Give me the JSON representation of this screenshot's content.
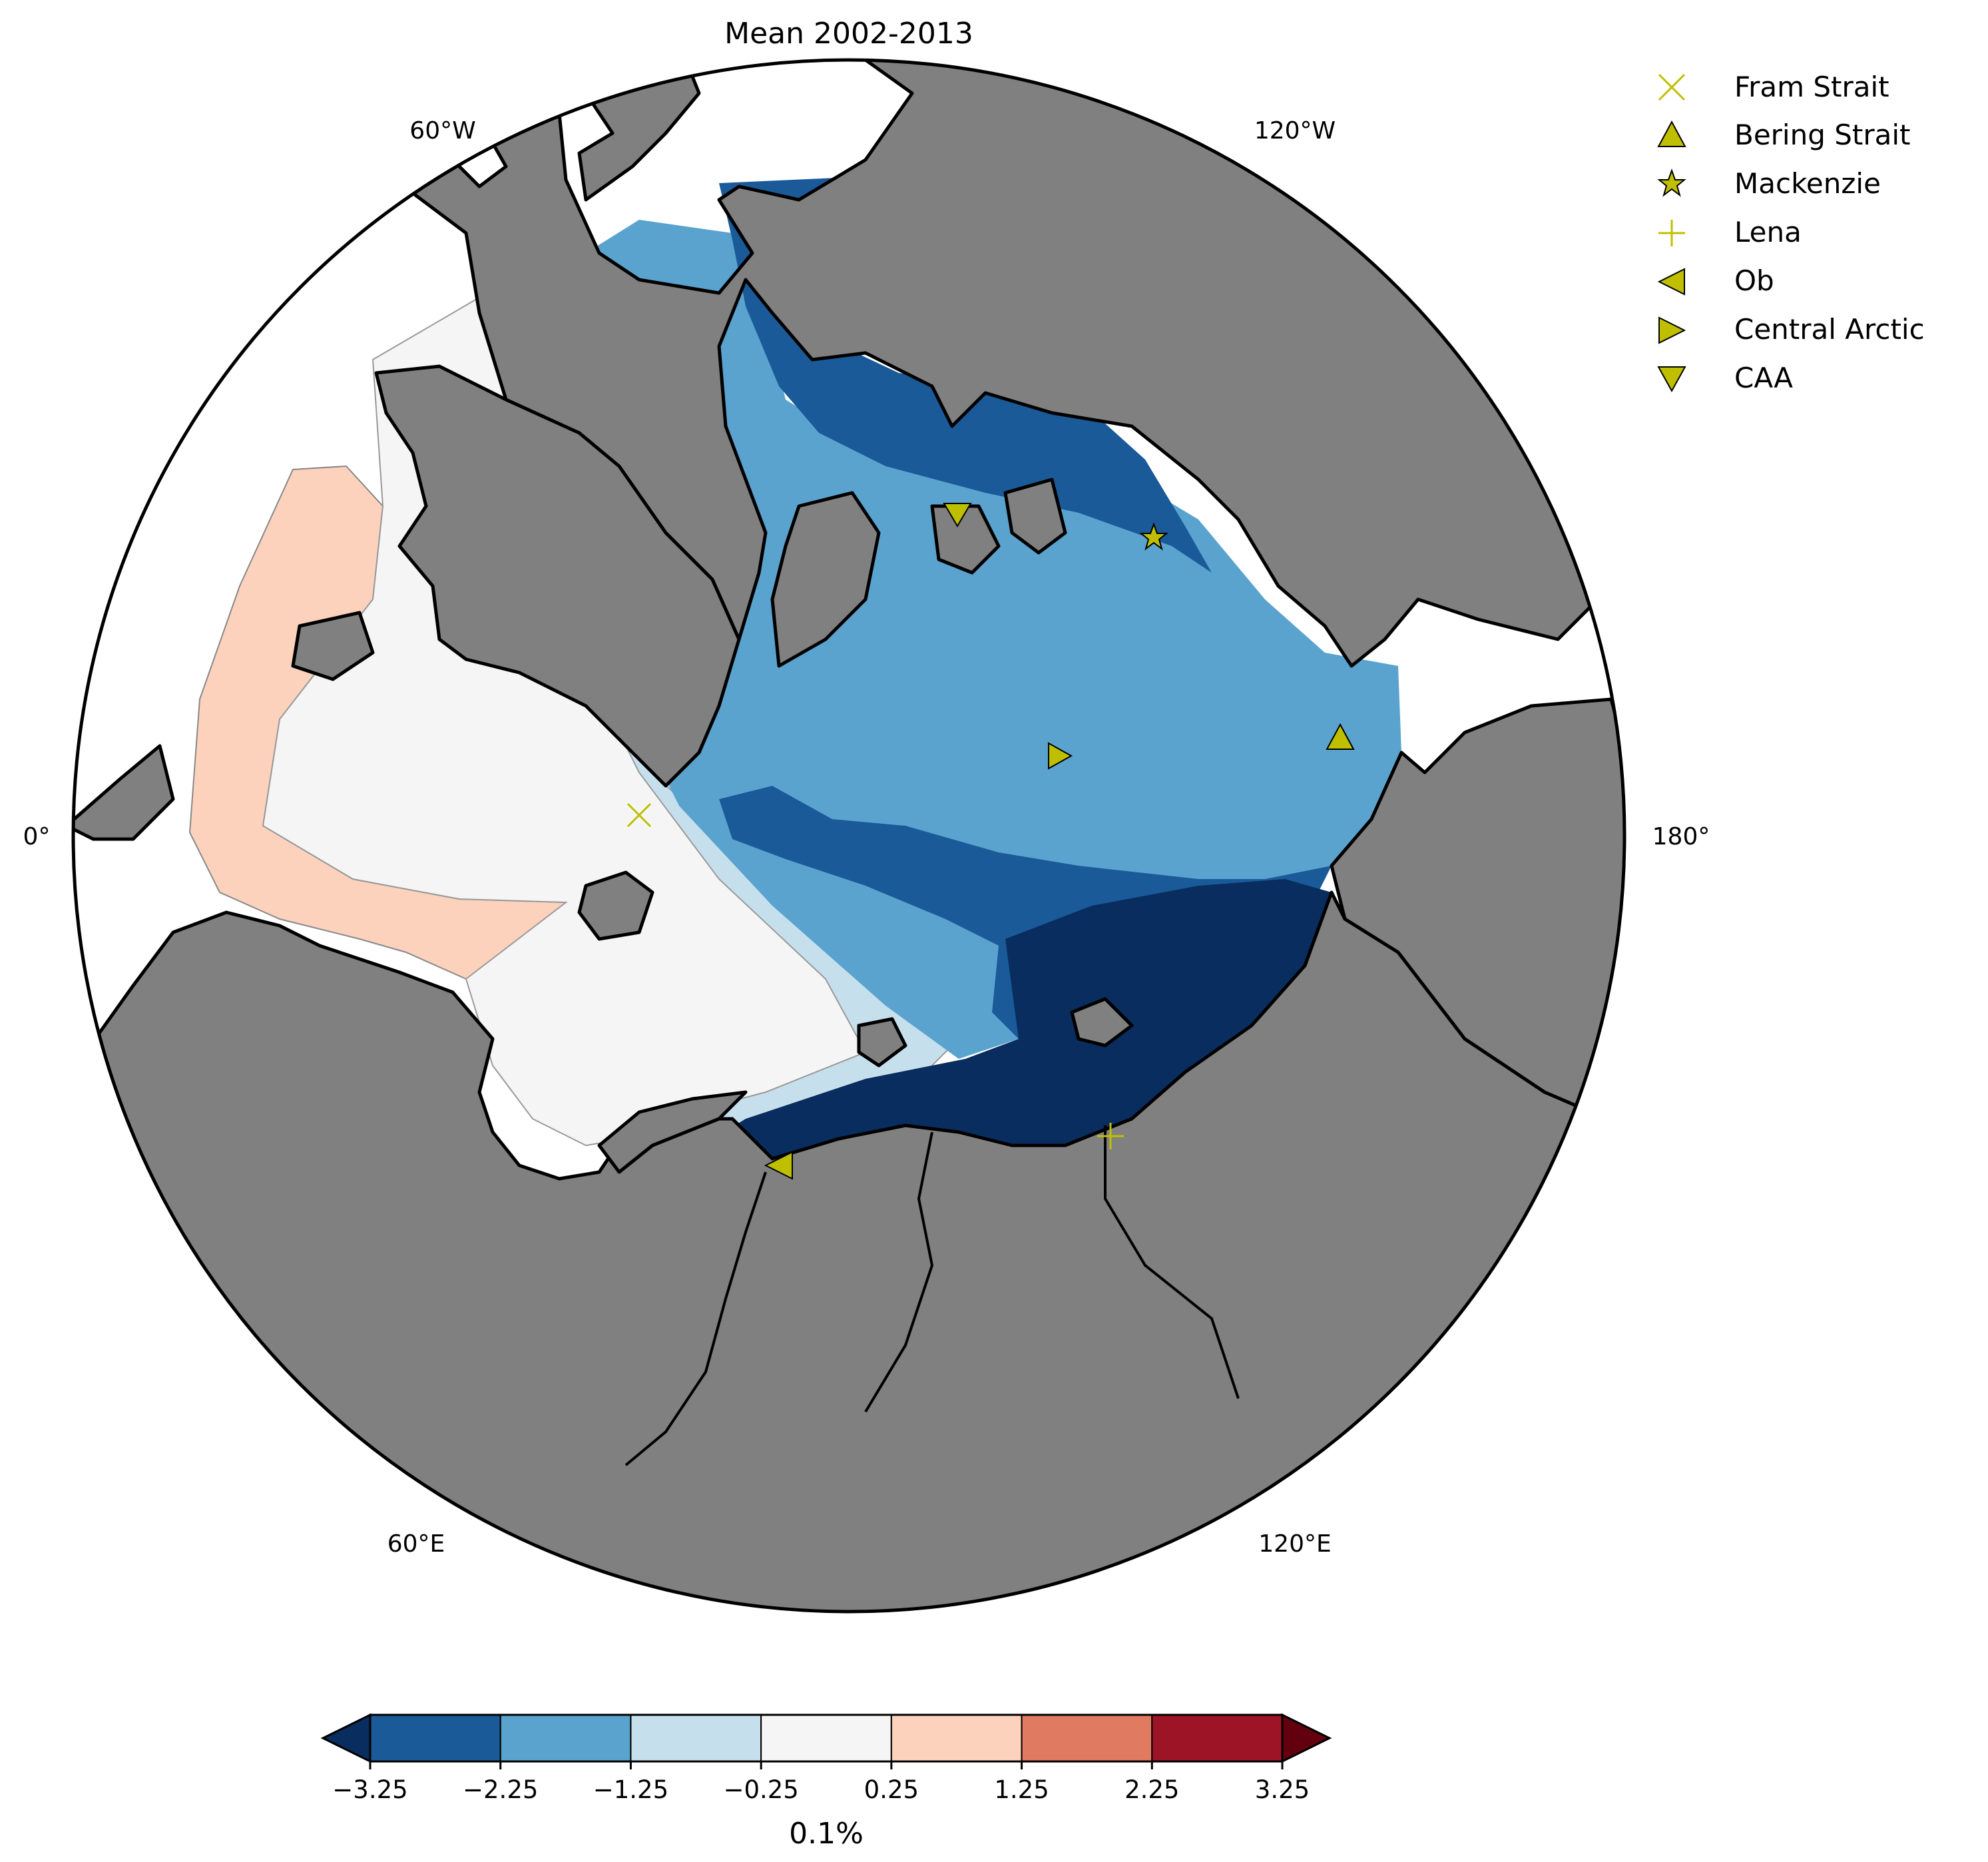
{
  "figure": {
    "title": "Mean 2002-2013",
    "longitude_labels": [
      "60°W",
      "120°W",
      "0°",
      "180°",
      "60°E",
      "120°E"
    ]
  },
  "legend": {
    "entries": [
      {
        "label": "Fram Strait",
        "marker": "x-cross"
      },
      {
        "label": "Bering Strait",
        "marker": "triangle-up"
      },
      {
        "label": "Mackenzie",
        "marker": "star"
      },
      {
        "label": "Lena",
        "marker": "plus"
      },
      {
        "label": "Ob",
        "marker": "triangle-left"
      },
      {
        "label": "Central Arctic",
        "marker": "triangle-right"
      },
      {
        "label": "CAA",
        "marker": "triangle-down"
      }
    ],
    "marker_color": "#bfbf00"
  },
  "colorbar": {
    "label": "0.1%",
    "ticks": [
      "−3.25",
      "−2.25",
      "−1.25",
      "−0.25",
      "0.25",
      "1.25",
      "2.25",
      "3.25"
    ],
    "levels": [
      {
        "from": -3.25,
        "to": -2.25,
        "color": "#1b5a99"
      },
      {
        "from": -2.25,
        "to": -1.25,
        "color": "#5ba3cf"
      },
      {
        "from": -1.25,
        "to": -0.25,
        "color": "#c6dfed"
      },
      {
        "from": -0.25,
        "to": 0.25,
        "color": "#f5f5f5"
      },
      {
        "from": 0.25,
        "to": 1.25,
        "color": "#fcd2bd"
      },
      {
        "from": 1.25,
        "to": 2.25,
        "color": "#e07b61"
      },
      {
        "from": 2.25,
        "to": 3.25,
        "color": "#9e1427"
      }
    ],
    "under_color": "#082d5e",
    "over_color": "#630010"
  },
  "map": {
    "projection": "north-polar-stereographic",
    "land_color": "#808080",
    "coast_color": "#000000"
  }
}
